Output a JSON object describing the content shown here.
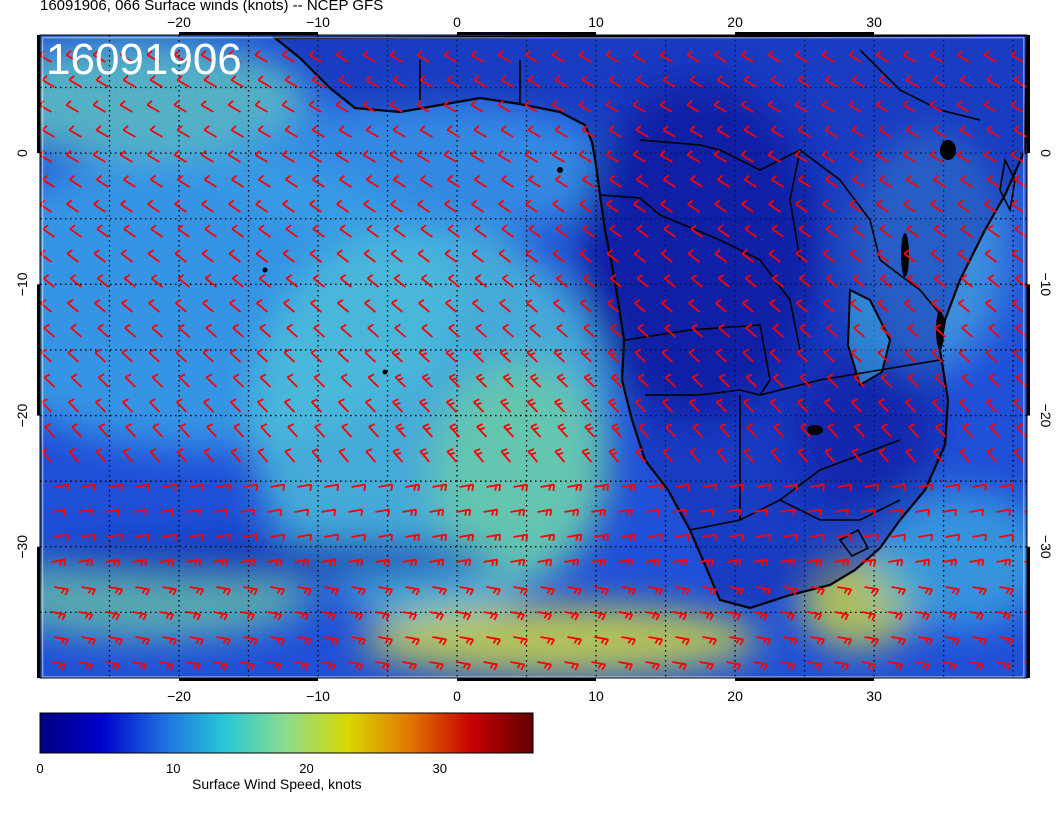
{
  "header": {
    "title": "16091906, 066 Surface winds (knots) -- NCEP GFS"
  },
  "map": {
    "stamp": "16091906",
    "lon_range": [
      -30,
      41
    ],
    "lat_range": [
      -40,
      9
    ],
    "lon_ticks": [
      {
        "value": -20,
        "label": "−20"
      },
      {
        "value": -10,
        "label": "−10"
      },
      {
        "value": 0,
        "label": "0"
      },
      {
        "value": 10,
        "label": "10"
      },
      {
        "value": 20,
        "label": "20"
      },
      {
        "value": 30,
        "label": "30"
      }
    ],
    "lat_ticks": [
      {
        "value": 0,
        "label": "0"
      },
      {
        "value": -10,
        "label": "−10"
      },
      {
        "value": -20,
        "label": "−20"
      },
      {
        "value": -30,
        "label": "−30"
      }
    ],
    "gridlines": "dotted",
    "barb_color": "#ff0000",
    "coast_color": "#000000"
  },
  "colorbar": {
    "title": "Surface Wind Speed, knots",
    "range": [
      0,
      37
    ],
    "ticks": [
      {
        "value": 0,
        "label": "0"
      },
      {
        "value": 10,
        "label": "10"
      },
      {
        "value": 20,
        "label": "20"
      },
      {
        "value": 30,
        "label": "30"
      }
    ],
    "stops": [
      "#000080",
      "#0000cd",
      "#1e6fe0",
      "#28c8d8",
      "#8cdc8c",
      "#d8d800",
      "#e07800",
      "#c80000",
      "#600000"
    ]
  }
}
